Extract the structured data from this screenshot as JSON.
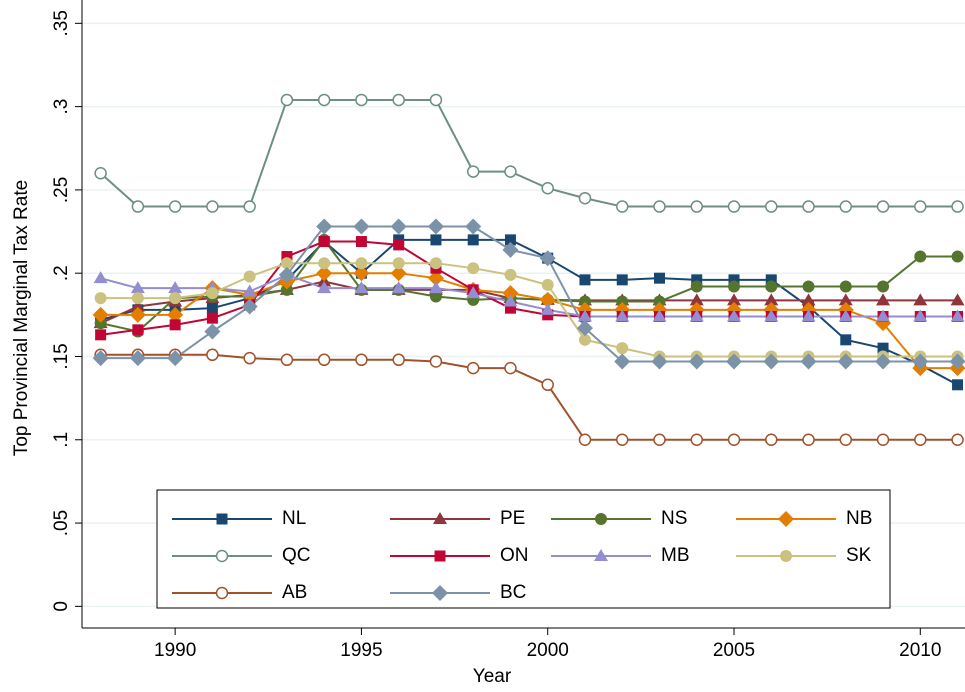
{
  "chart_data": {
    "type": "line",
    "x_label": "Year",
    "y_label": "Top Provincial Marginal Tax Rate",
    "x": [
      1988,
      1989,
      1990,
      1991,
      1992,
      1993,
      1994,
      1995,
      1996,
      1997,
      1998,
      1999,
      2000,
      2001,
      2002,
      2003,
      2004,
      2005,
      2006,
      2007,
      2008,
      2009,
      2010,
      2011
    ],
    "xlim": [
      1987.5,
      2011.2
    ],
    "xticks": [
      1990,
      1995,
      2000,
      2005,
      2010
    ],
    "ylim": [
      -0.013,
      0.364
    ],
    "yticks": [
      {
        "value": 0,
        "label": "0"
      },
      {
        "value": 0.05,
        "label": ".05"
      },
      {
        "value": 0.1,
        "label": ".1"
      },
      {
        "value": 0.15,
        "label": ".15"
      },
      {
        "value": 0.2,
        "label": ".2"
      },
      {
        "value": 0.25,
        "label": ".25"
      },
      {
        "value": 0.3,
        "label": ".3"
      },
      {
        "value": 0.35,
        "label": ".35"
      }
    ],
    "grid": true,
    "legend_position": "bottom",
    "series": [
      {
        "name": "NL",
        "color": "#1a476f",
        "marker": "square",
        "values": [
          0.172,
          0.178,
          0.178,
          0.179,
          0.185,
          0.196,
          0.219,
          0.2,
          0.22,
          0.22,
          0.22,
          0.22,
          0.209,
          0.196,
          0.196,
          0.197,
          0.196,
          0.196,
          0.196,
          0.18,
          0.16,
          0.155,
          0.145,
          0.133
        ]
      },
      {
        "name": "PE",
        "color": "#90353b",
        "marker": "triangle",
        "values": [
          0.17,
          0.18,
          0.183,
          0.185,
          0.187,
          0.19,
          0.195,
          0.19,
          0.19,
          0.19,
          0.19,
          0.185,
          0.184,
          0.1837,
          0.1837,
          0.1837,
          0.1837,
          0.1837,
          0.1837,
          0.1837,
          0.1837,
          0.1837,
          0.1837,
          0.1837
        ]
      },
      {
        "name": "NS",
        "color": "#55752f",
        "marker": "circle",
        "values": [
          0.17,
          0.165,
          0.185,
          0.186,
          0.186,
          0.19,
          0.22,
          0.19,
          0.19,
          0.186,
          0.184,
          0.185,
          0.184,
          0.183,
          0.183,
          0.183,
          0.192,
          0.192,
          0.192,
          0.192,
          0.192,
          0.192,
          0.21,
          0.21
        ]
      },
      {
        "name": "NB",
        "color": "#e37e00",
        "marker": "diamond",
        "values": [
          0.175,
          0.175,
          0.175,
          0.191,
          0.187,
          0.195,
          0.2,
          0.2,
          0.2,
          0.197,
          0.19,
          0.188,
          0.184,
          0.178,
          0.178,
          0.178,
          0.178,
          0.178,
          0.178,
          0.178,
          0.178,
          0.17,
          0.143,
          0.143
        ]
      },
      {
        "name": "QC",
        "color": "#6e8e84",
        "marker": "circle-open",
        "values": [
          0.26,
          0.24,
          0.24,
          0.24,
          0.24,
          0.304,
          0.304,
          0.304,
          0.304,
          0.304,
          0.261,
          0.261,
          0.251,
          0.245,
          0.24,
          0.24,
          0.24,
          0.24,
          0.24,
          0.24,
          0.24,
          0.24,
          0.24,
          0.24
        ]
      },
      {
        "name": "ON",
        "color": "#c10534",
        "marker": "square",
        "values": [
          0.163,
          0.166,
          0.169,
          0.173,
          0.181,
          0.21,
          0.219,
          0.219,
          0.217,
          0.203,
          0.19,
          0.179,
          0.175,
          0.174,
          0.174,
          0.174,
          0.174,
          0.174,
          0.174,
          0.174,
          0.174,
          0.174,
          0.174,
          0.174
        ]
      },
      {
        "name": "MB",
        "color": "#938dd2",
        "marker": "triangle",
        "values": [
          0.197,
          0.191,
          0.191,
          0.191,
          0.189,
          0.199,
          0.191,
          0.191,
          0.191,
          0.191,
          0.188,
          0.183,
          0.178,
          0.174,
          0.174,
          0.174,
          0.174,
          0.174,
          0.174,
          0.174,
          0.174,
          0.174,
          0.174,
          0.174
        ]
      },
      {
        "name": "SK",
        "color": "#cac27e",
        "marker": "circle",
        "values": [
          0.185,
          0.185,
          0.185,
          0.188,
          0.198,
          0.206,
          0.206,
          0.206,
          0.206,
          0.206,
          0.203,
          0.199,
          0.193,
          0.16,
          0.155,
          0.15,
          0.15,
          0.15,
          0.15,
          0.15,
          0.15,
          0.15,
          0.15,
          0.15
        ]
      },
      {
        "name": "AB",
        "color": "#a0522d",
        "marker": "circle-open",
        "values": [
          0.151,
          0.151,
          0.151,
          0.151,
          0.149,
          0.148,
          0.148,
          0.148,
          0.148,
          0.147,
          0.143,
          0.143,
          0.133,
          0.1,
          0.1,
          0.1,
          0.1,
          0.1,
          0.1,
          0.1,
          0.1,
          0.1,
          0.1,
          0.1
        ]
      },
      {
        "name": "BC",
        "color": "#7b92a8",
        "marker": "diamond",
        "values": [
          0.149,
          0.149,
          0.149,
          0.165,
          0.18,
          0.199,
          0.228,
          0.228,
          0.228,
          0.228,
          0.228,
          0.214,
          0.209,
          0.167,
          0.147,
          0.147,
          0.147,
          0.147,
          0.147,
          0.147,
          0.147,
          0.147,
          0.147,
          0.147
        ]
      }
    ]
  }
}
